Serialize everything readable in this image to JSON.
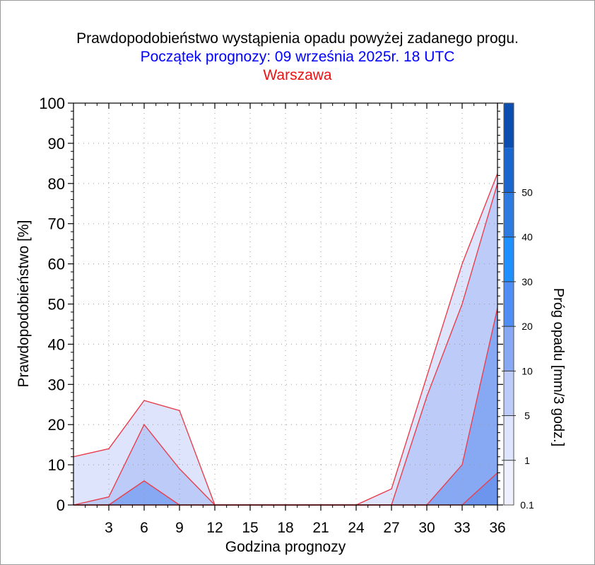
{
  "chart_data": {
    "type": "area",
    "title": "Prawdopodobieństwo wystąpienia opadu powyżej zadanego progu.",
    "subtitle": "Początek prognozy: 09 września 2025r. 18 UTC",
    "location": "Warszawa",
    "xlabel": "Godzina prognozy",
    "ylabel": "Prawdopodobieństwo [%]",
    "colorbar_label": "Próg opadu [mm/3 godz.]",
    "x": [
      0,
      3,
      6,
      9,
      12,
      15,
      18,
      21,
      24,
      27,
      30,
      33,
      36
    ],
    "xticks": [
      "3",
      "6",
      "9",
      "12",
      "15",
      "18",
      "21",
      "24",
      "27",
      "30",
      "33",
      "36"
    ],
    "xlim": [
      0,
      36
    ],
    "yticks": [
      "0",
      "10",
      "20",
      "30",
      "40",
      "50",
      "60",
      "70",
      "80",
      "90",
      "100"
    ],
    "ylim": [
      0,
      100
    ],
    "grid": true,
    "series": [
      {
        "name": "0.1",
        "color": "#dde4fb",
        "values": [
          12,
          14,
          26,
          23.5,
          0,
          0,
          0,
          0,
          0,
          4,
          32,
          60,
          82.5
        ]
      },
      {
        "name": "1",
        "color": "#bccbf7",
        "values": [
          0,
          2,
          20,
          9,
          0,
          0,
          0,
          0,
          0,
          0,
          27,
          50,
          80
        ]
      },
      {
        "name": "5",
        "color": "#87a8f2",
        "values": [
          0,
          0,
          6,
          0,
          0,
          0,
          0,
          0,
          0,
          0,
          0,
          10,
          49
        ]
      },
      {
        "name": "10",
        "color": "#6e95ee",
        "values": [
          0,
          0,
          0,
          0,
          0,
          0,
          0,
          0,
          0,
          0,
          0,
          0,
          8
        ]
      }
    ],
    "colorbar": {
      "labels": [
        "0.1",
        "1",
        "5",
        "10",
        "20",
        "30",
        "40",
        "50"
      ],
      "colors": [
        "#eef1fd",
        "#dde4fb",
        "#bccbf7",
        "#87a8f2",
        "#4f8ff5",
        "#1e90ff",
        "#2d7be0",
        "#1a66cf",
        "#0c4db0"
      ]
    }
  }
}
